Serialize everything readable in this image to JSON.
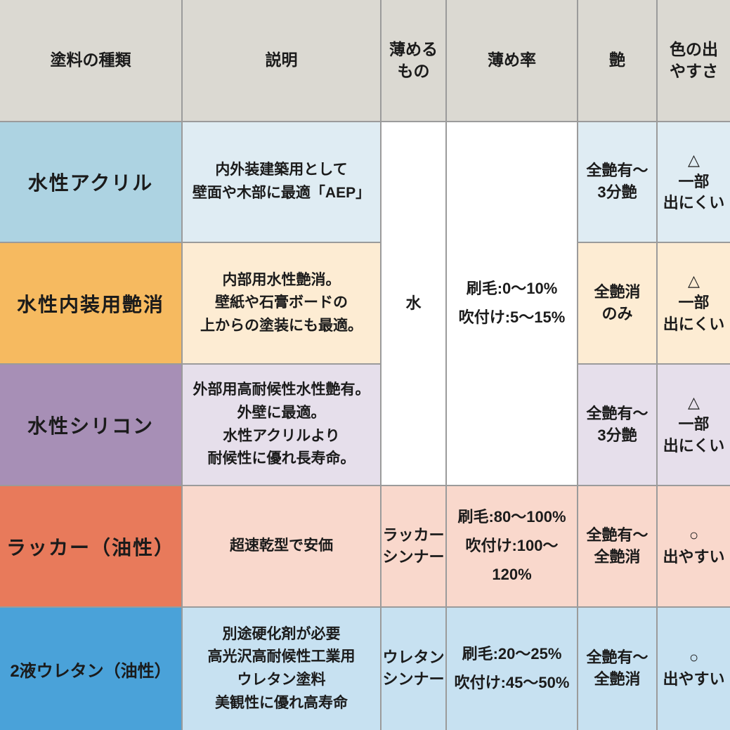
{
  "colors": {
    "grid_line": "#9b9b9b",
    "header_bg": "#dbd9d2",
    "merged_bg": "#ffffff",
    "text": "#1b1b1b",
    "rows": [
      {
        "main": "#add3e2",
        "light": "#dfecf3"
      },
      {
        "main": "#f6ba60",
        "light": "#fdecd3"
      },
      {
        "main": "#a78fb6",
        "light": "#e6dfeb"
      },
      {
        "main": "#e87a5b",
        "light": "#f9d8cc"
      },
      {
        "main": "#4aa2d9",
        "light": "#c7e1f1"
      }
    ]
  },
  "headers": {
    "type": "塗料の種類",
    "desc": "説明",
    "thinner": "薄める\nもの",
    "ratio": "薄め率",
    "gloss": "艶",
    "ease": "色の出\nやすさ"
  },
  "merged": {
    "thinner": "水",
    "ratio": "刷毛:0～10%\n吹付け:5～15%"
  },
  "rows": [
    {
      "name": "水性アクリル",
      "desc": "内外装建築用として\n壁面や木部に最適「AEP」",
      "gloss": "全艶有～\n3分艶",
      "ease": "△\n一部\n出にくい"
    },
    {
      "name": "水性内装用艶消",
      "desc": "内部用水性艶消。\n壁紙や石膏ボードの\n上からの塗装にも最適。",
      "gloss": "全艶消\nのみ",
      "ease": "△\n一部\n出にくい"
    },
    {
      "name": "水性シリコン",
      "desc": "外部用高耐候性水性艶有。\n外壁に最適。\n水性アクリルより\n耐候性に優れ長寿命。",
      "gloss": "全艶有～\n3分艶",
      "ease": "△\n一部\n出にくい"
    },
    {
      "name": "ラッカー（油性）",
      "desc": "超速乾型で安価",
      "thinner": "ラッカー\nシンナー",
      "ratio": "刷毛:80～100%\n吹付け:100～120%",
      "gloss": "全艶有～\n全艶消",
      "ease": "○\n出やすい"
    },
    {
      "name": "2液ウレタン（油性）",
      "desc": "別途硬化剤が必要\n高光沢高耐候性工業用\nウレタン塗料\n美観性に優れ高寿命",
      "thinner": "ウレタン\nシンナー",
      "ratio": "刷毛:20～25%\n吹付け:45～50%",
      "gloss": "全艶有～\n全艶消",
      "ease": "○\n出やすい"
    }
  ],
  "chart_data": {
    "type": "table",
    "title": "塗料の種類 比較表",
    "columns": [
      "塗料の種類",
      "説明",
      "薄めるもの",
      "薄め率",
      "艶",
      "色の出やすさ"
    ],
    "rows": [
      [
        "水性アクリル",
        "内外装建築用として壁面や木部に最適「AEP」",
        "水",
        "刷毛:0～10% 吹付け:5～15%",
        "全艶有～3分艶",
        "△ 一部出にくい"
      ],
      [
        "水性内装用艶消",
        "内部用水性艶消。壁紙や石膏ボードの上からの塗装にも最適。",
        "水",
        "刷毛:0～10% 吹付け:5～15%",
        "全艶消のみ",
        "△ 一部出にくい"
      ],
      [
        "水性シリコン",
        "外部用高耐候性水性艶有。外壁に最適。水性アクリルより耐候性に優れ長寿命。",
        "水",
        "刷毛:0～10% 吹付け:5～15%",
        "全艶有～3分艶",
        "△ 一部出にくい"
      ],
      [
        "ラッカー（油性）",
        "超速乾型で安価",
        "ラッカーシンナー",
        "刷毛:80～100% 吹付け:100～120%",
        "全艶有～全艶消",
        "○ 出やすい"
      ],
      [
        "2液ウレタン（油性）",
        "別途硬化剤が必要 高光沢高耐候性工業用 ウレタン塗料 美観性に優れ高寿命",
        "ウレタンシンナー",
        "刷毛:20～25% 吹付け:45～50%",
        "全艶有～全艶消",
        "○ 出やすい"
      ]
    ],
    "merged_cells": [
      {
        "columns": [
          "薄めるもの",
          "薄め率"
        ],
        "rows_spanned": [
          0,
          1,
          2
        ],
        "values": [
          "水",
          "刷毛:0～10% 吹付け:5～15%"
        ]
      }
    ],
    "legend_position": "none",
    "grid": true
  }
}
